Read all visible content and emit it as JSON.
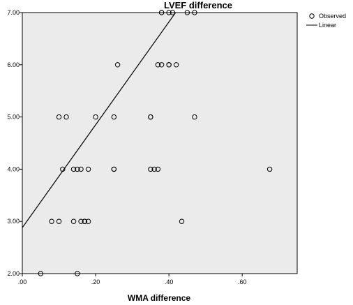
{
  "chart_data": {
    "type": "scatter",
    "title": "LVEF difference",
    "xlabel": "WMA difference",
    "ylabel": "",
    "xlim": [
      0.0,
      0.75
    ],
    "ylim": [
      2.0,
      7.0
    ],
    "x_ticks": [
      ".00",
      ".20",
      ".40",
      ".60"
    ],
    "y_ticks": [
      "2.00",
      "3.00",
      "4.00",
      "5.00",
      "6.00",
      "7.00"
    ],
    "grid": false,
    "legend_position": "top-right",
    "colors": {
      "plot_background": "#ebebeb",
      "marker_edge": "#000000",
      "fit_line": "#000000"
    },
    "series": [
      {
        "name": "Observed",
        "points": [
          [
            0.05,
            2.0
          ],
          [
            0.15,
            2.0
          ],
          [
            0.08,
            3.0
          ],
          [
            0.1,
            3.0
          ],
          [
            0.14,
            3.0
          ],
          [
            0.16,
            3.0
          ],
          [
            0.17,
            3.0
          ],
          [
            0.17,
            3.0
          ],
          [
            0.18,
            3.0
          ],
          [
            0.435,
            3.0
          ],
          [
            0.11,
            4.0
          ],
          [
            0.14,
            4.0
          ],
          [
            0.15,
            4.0
          ],
          [
            0.16,
            4.0
          ],
          [
            0.18,
            4.0
          ],
          [
            0.25,
            4.0
          ],
          [
            0.25,
            4.0
          ],
          [
            0.35,
            4.0
          ],
          [
            0.36,
            4.0
          ],
          [
            0.37,
            4.0
          ],
          [
            0.675,
            4.0
          ],
          [
            0.1,
            5.0
          ],
          [
            0.12,
            5.0
          ],
          [
            0.2,
            5.0
          ],
          [
            0.25,
            5.0
          ],
          [
            0.35,
            5.0
          ],
          [
            0.35,
            5.0
          ],
          [
            0.47,
            5.0
          ],
          [
            0.26,
            6.0
          ],
          [
            0.37,
            6.0
          ],
          [
            0.38,
            6.0
          ],
          [
            0.4,
            6.0
          ],
          [
            0.4,
            6.0
          ],
          [
            0.42,
            6.0
          ],
          [
            0.38,
            7.0
          ],
          [
            0.38,
            7.0
          ],
          [
            0.4,
            7.0
          ],
          [
            0.41,
            7.0
          ],
          [
            0.45,
            7.0
          ],
          [
            0.47,
            7.0
          ]
        ]
      },
      {
        "name": "Linear",
        "line": {
          "intercept": 2.88,
          "slope": 9.85
        }
      }
    ]
  }
}
